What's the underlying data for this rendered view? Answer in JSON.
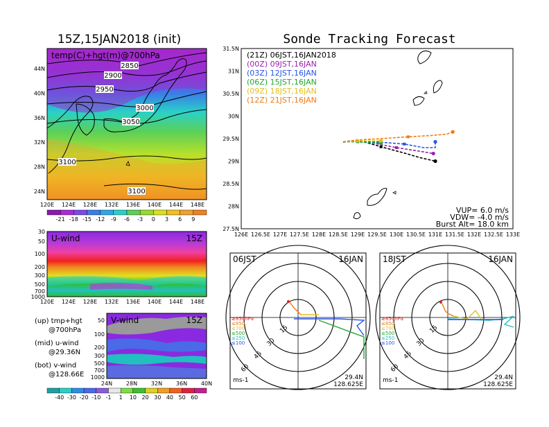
{
  "left": {
    "title": "15Z,15JAN2018 (init)",
    "map_label": "temp(C)+hgt(m)@700hPa",
    "lat_ticks": [
      "44N",
      "40N",
      "36N",
      "32N",
      "28N",
      "24N"
    ],
    "lon_ticks": [
      "120E",
      "124E",
      "128E",
      "132E",
      "136E",
      "140E",
      "144E",
      "148E"
    ],
    "contour_labels": [
      "2850",
      "2900",
      "2950",
      "3000",
      "3050",
      "3100",
      "3100"
    ],
    "temp_scale": [
      "-21",
      "-18",
      "-15",
      "-12",
      "-9",
      "-6",
      "-3",
      "0",
      "3",
      "6",
      "9"
    ],
    "uwind_label": "U-wind",
    "uwind_time": "15Z",
    "pres_ticks": [
      "30",
      "50",
      "100",
      "200",
      "300",
      "500",
      "700",
      "1000"
    ],
    "uwind_lon_ticks": [
      "120E",
      "124E",
      "128E",
      "132E",
      "136E",
      "140E",
      "144E",
      "148E"
    ],
    "vwind_label": "V-wind",
    "vwind_time": "15Z",
    "vwind_pres_ticks": [
      "50",
      "100",
      "200",
      "300",
      "500",
      "700",
      "1000"
    ],
    "vwind_lat_ticks": [
      "24N",
      "28N",
      "32N",
      "36N",
      "40N"
    ],
    "notes": [
      "(up) tmp+hgt",
      "@700hPa",
      "(mid) u-wind",
      "@29.36N",
      "(bot) v-wind",
      "@128.66E"
    ],
    "wind_scale": [
      "-40",
      "-30",
      "-20",
      "-10",
      "-1",
      "1",
      "10",
      "20",
      "30",
      "40",
      "50",
      "60"
    ]
  },
  "right": {
    "title": "Sonde Tracking Forecast",
    "legend": [
      {
        "text": "(21Z) 06JST,16JAN2018",
        "color": "#000000"
      },
      {
        "text": "(00Z) 09JST,16JAN",
        "color": "#9b1fae"
      },
      {
        "text": "(03Z) 12JST,16JAN",
        "color": "#2454e8"
      },
      {
        "text": "(06Z) 15JST,16JAN",
        "color": "#1fa82e"
      },
      {
        "text": "(09Z) 18JST,16JAN",
        "color": "#e0c020"
      },
      {
        "text": "(12Z) 21JST,16JAN",
        "color": "#f07a10"
      }
    ],
    "lat_ticks": [
      "31.5N",
      "31N",
      "30.5N",
      "30N",
      "29.5N",
      "29N",
      "28.5N",
      "28N",
      "27.5N"
    ],
    "lon_ticks": [
      "126E",
      "126.5E",
      "127E",
      "127.5E",
      "128E",
      "128.5E",
      "129E",
      "129.5E",
      "130E",
      "130.5E",
      "131E",
      "131.5E",
      "132E",
      "132.5E",
      "133E"
    ],
    "params": [
      "VUP=  6.0 m/s",
      "VDW= -4.0 m/s",
      "Burst Alt= 18.0 km"
    ],
    "hodo": [
      {
        "time": "06JST",
        "date": "16JAN",
        "lat": "29.4N",
        "lon": "128.625E",
        "unit": "ms-1"
      },
      {
        "time": "18JST",
        "date": "16JAN",
        "lat": "29.4N",
        "lon": "128.625E",
        "unit": "ms-1"
      }
    ],
    "hodo_rings": [
      "15",
      "30",
      "45",
      "60"
    ],
    "hodo_levels": [
      {
        "text": "≥850hPa",
        "color": "#e02020"
      },
      {
        "text": "≤850",
        "color": "#f07a10"
      },
      {
        "text": "≤700",
        "color": "#e0c020"
      },
      {
        "text": "≤500",
        "color": "#1fa82e"
      },
      {
        "text": "≤250",
        "color": "#20c0c0"
      },
      {
        "text": "≤100",
        "color": "#2454e8"
      }
    ]
  },
  "chart_data": [
    {
      "type": "line",
      "title": "Sonde Tracking Forecast",
      "xlabel": "",
      "ylabel": "",
      "xlim": [
        126,
        133
      ],
      "ylim": [
        27.5,
        31.5
      ],
      "series": [
        {
          "name": "(21Z) 06JST,16JAN2018",
          "color": "#000000",
          "x": [
            128.625,
            128.8,
            129.2,
            129.6,
            130.2,
            130.6,
            131.0
          ],
          "y": [
            29.42,
            29.45,
            29.42,
            29.32,
            29.18,
            29.08,
            29.0
          ]
        },
        {
          "name": "(00Z) 09JST,16JAN",
          "color": "#9b1fae",
          "x": [
            128.625,
            128.9,
            129.4,
            130.0,
            130.6,
            130.95
          ],
          "y": [
            29.43,
            29.44,
            29.4,
            29.3,
            29.22,
            29.17
          ]
        },
        {
          "name": "(03Z) 12JST,16JAN",
          "color": "#2454e8",
          "x": [
            128.625,
            129.0,
            129.6,
            130.2,
            130.7,
            131.0,
            131.0
          ],
          "y": [
            29.43,
            29.45,
            29.42,
            29.38,
            29.3,
            29.3,
            29.43
          ]
        },
        {
          "name": "(06Z) 15JST,16JAN",
          "color": "#1fa82e",
          "x": [
            128.625,
            129.0,
            129.6
          ],
          "y": [
            29.43,
            29.43,
            29.4
          ]
        },
        {
          "name": "(09Z) 18JST,16JAN",
          "color": "#e0c020",
          "x": [
            128.625,
            129.0,
            129.6
          ],
          "y": [
            29.43,
            29.45,
            29.45
          ]
        },
        {
          "name": "(12Z) 21JST,16JAN",
          "color": "#f07a10",
          "x": [
            128.625,
            129.0,
            129.6,
            130.3,
            130.9,
            131.3,
            131.45
          ],
          "y": [
            29.43,
            29.47,
            29.5,
            29.54,
            29.57,
            29.6,
            29.65
          ]
        }
      ]
    }
  ]
}
